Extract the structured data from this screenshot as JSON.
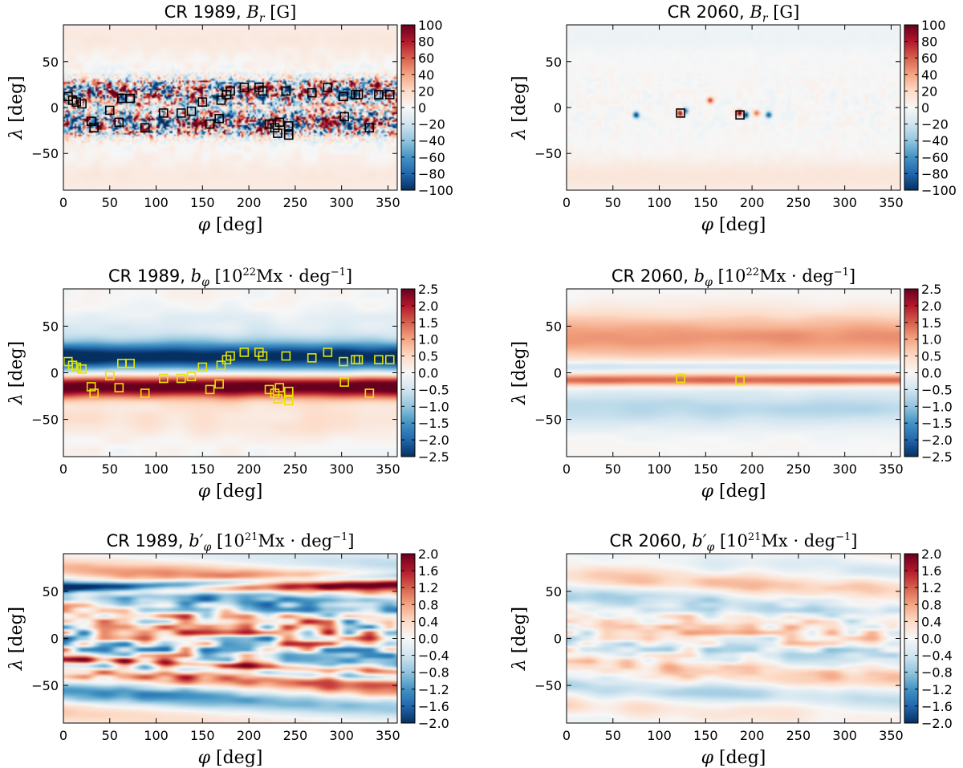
{
  "chart_data": [
    {
      "type": "heatmap",
      "id": "cr1989_Br",
      "title": {
        "prefix": "CR 1989, ",
        "symbol": "B",
        "sub": "r",
        "unit": "[G]"
      },
      "xlabel": {
        "symbol": "φ",
        "unit": "[deg]"
      },
      "ylabel": {
        "symbol": "λ",
        "unit": "[deg]"
      },
      "xlim": [
        0,
        360
      ],
      "ylim": [
        -90,
        90
      ],
      "xticks": [
        "0",
        "50",
        "100",
        "150",
        "200",
        "250",
        "300",
        "350"
      ],
      "yticks": [
        "50",
        "0",
        "−50"
      ],
      "colorbar": {
        "min": -100,
        "max": 100,
        "ticks": [
          "100",
          "80",
          "60",
          "40",
          "20",
          "0",
          "−20",
          "−40",
          "−60",
          "−80",
          "−100"
        ]
      },
      "field": "Br1989",
      "marker_color": "#000000",
      "markers": [
        [
          5,
          12
        ],
        [
          10,
          8
        ],
        [
          14,
          6
        ],
        [
          20,
          4
        ],
        [
          30,
          -15
        ],
        [
          33,
          -22
        ],
        [
          50,
          -3
        ],
        [
          60,
          -16
        ],
        [
          63,
          10
        ],
        [
          72,
          10
        ],
        [
          88,
          -22
        ],
        [
          108,
          -6
        ],
        [
          127,
          -6
        ],
        [
          138,
          -4
        ],
        [
          150,
          6
        ],
        [
          158,
          -18
        ],
        [
          168,
          -12
        ],
        [
          170,
          8
        ],
        [
          176,
          14
        ],
        [
          180,
          18
        ],
        [
          195,
          22
        ],
        [
          211,
          22
        ],
        [
          215,
          18
        ],
        [
          222,
          -18
        ],
        [
          228,
          -22
        ],
        [
          231,
          -28
        ],
        [
          233,
          -16
        ],
        [
          243,
          -30
        ],
        [
          243,
          -20
        ],
        [
          240,
          18
        ],
        [
          268,
          16
        ],
        [
          285,
          22
        ],
        [
          302,
          12
        ],
        [
          303,
          -10
        ],
        [
          315,
          14
        ],
        [
          318,
          14
        ],
        [
          330,
          -22
        ],
        [
          340,
          14
        ],
        [
          352,
          14
        ]
      ]
    },
    {
      "type": "heatmap",
      "id": "cr2060_Br",
      "title": {
        "prefix": "CR 2060, ",
        "symbol": "B",
        "sub": "r",
        "unit": "[G]"
      },
      "xlabel": {
        "symbol": "φ",
        "unit": "[deg]"
      },
      "ylabel": {
        "symbol": "λ",
        "unit": "[deg]"
      },
      "xlim": [
        0,
        360
      ],
      "ylim": [
        -90,
        90
      ],
      "xticks": [
        "0",
        "50",
        "100",
        "150",
        "200",
        "250",
        "300",
        "350"
      ],
      "yticks": [
        "50",
        "0",
        "−50"
      ],
      "colorbar": {
        "min": -100,
        "max": 100,
        "ticks": [
          "100",
          "80",
          "60",
          "40",
          "20",
          "0",
          "−20",
          "−40",
          "−60",
          "−80",
          "−100"
        ]
      },
      "field": "Br2060",
      "marker_color": "#000000",
      "markers": [
        [
          123,
          -6
        ],
        [
          187,
          -8
        ]
      ]
    },
    {
      "type": "heatmap",
      "id": "cr1989_bphi",
      "title": {
        "prefix": "CR 1989, ",
        "symbol": "b",
        "sub": "φ",
        "unit": "[10",
        "exp": "22",
        "unit2": "Mx · deg",
        "exp2": "−1",
        "unit3": "]"
      },
      "xlabel": {
        "symbol": "φ",
        "unit": "[deg]"
      },
      "ylabel": {
        "symbol": "λ",
        "unit": "[deg]"
      },
      "xlim": [
        0,
        360
      ],
      "ylim": [
        -90,
        90
      ],
      "xticks": [
        "0",
        "50",
        "100",
        "150",
        "200",
        "250",
        "300",
        "350"
      ],
      "yticks": [
        "50",
        "0",
        "−50"
      ],
      "colorbar": {
        "min": -2.5,
        "max": 2.5,
        "ticks": [
          "2.5",
          "2.0",
          "1.5",
          "1.0",
          "0.5",
          "0.0",
          "−0.5",
          "−1.0",
          "−1.5",
          "−2.0",
          "−2.5"
        ]
      },
      "field": "bphi1989",
      "marker_color": "#e6e600",
      "markers": [
        [
          5,
          12
        ],
        [
          10,
          8
        ],
        [
          14,
          6
        ],
        [
          20,
          4
        ],
        [
          30,
          -15
        ],
        [
          33,
          -22
        ],
        [
          50,
          -3
        ],
        [
          60,
          -16
        ],
        [
          63,
          10
        ],
        [
          72,
          10
        ],
        [
          88,
          -22
        ],
        [
          108,
          -6
        ],
        [
          127,
          -6
        ],
        [
          138,
          -4
        ],
        [
          150,
          6
        ],
        [
          158,
          -18
        ],
        [
          168,
          -12
        ],
        [
          170,
          8
        ],
        [
          176,
          14
        ],
        [
          180,
          18
        ],
        [
          195,
          22
        ],
        [
          211,
          22
        ],
        [
          215,
          18
        ],
        [
          222,
          -18
        ],
        [
          228,
          -22
        ],
        [
          231,
          -28
        ],
        [
          233,
          -16
        ],
        [
          243,
          -30
        ],
        [
          243,
          -20
        ],
        [
          240,
          18
        ],
        [
          268,
          16
        ],
        [
          285,
          22
        ],
        [
          302,
          12
        ],
        [
          303,
          -10
        ],
        [
          315,
          14
        ],
        [
          318,
          14
        ],
        [
          330,
          -22
        ],
        [
          340,
          14
        ],
        [
          352,
          14
        ]
      ]
    },
    {
      "type": "heatmap",
      "id": "cr2060_bphi",
      "title": {
        "prefix": "CR 2060, ",
        "symbol": "b",
        "sub": "φ",
        "unit": "[10",
        "exp": "22",
        "unit2": "Mx · deg",
        "exp2": "−1",
        "unit3": "]"
      },
      "xlabel": {
        "symbol": "φ",
        "unit": "[deg]"
      },
      "ylabel": {
        "symbol": "λ",
        "unit": "[deg]"
      },
      "xlim": [
        0,
        360
      ],
      "ylim": [
        -90,
        90
      ],
      "xticks": [
        "0",
        "50",
        "100",
        "150",
        "200",
        "250",
        "300",
        "350"
      ],
      "yticks": [
        "50",
        "0",
        "−50"
      ],
      "colorbar": {
        "min": -2.5,
        "max": 2.5,
        "ticks": [
          "2.5",
          "2.0",
          "1.5",
          "1.0",
          "0.5",
          "0.0",
          "−0.5",
          "−1.0",
          "−1.5",
          "−2.0",
          "−2.5"
        ]
      },
      "field": "bphi2060",
      "marker_color": "#e6e600",
      "markers": [
        [
          123,
          -6
        ],
        [
          187,
          -8
        ]
      ]
    },
    {
      "type": "heatmap",
      "id": "cr1989_bphiprime",
      "title": {
        "prefix": "CR 1989, ",
        "symbol": "b′",
        "sub": "φ",
        "unit": "[10",
        "exp": "21",
        "unit2": "Mx · deg",
        "exp2": "−1",
        "unit3": "]"
      },
      "xlabel": {
        "symbol": "φ",
        "unit": "[deg]"
      },
      "ylabel": {
        "symbol": "λ",
        "unit": "[deg]"
      },
      "xlim": [
        0,
        360
      ],
      "ylim": [
        -90,
        90
      ],
      "xticks": [
        "0",
        "50",
        "100",
        "150",
        "200",
        "250",
        "300",
        "350"
      ],
      "yticks": [
        "50",
        "0",
        "−50"
      ],
      "colorbar": {
        "min": -2.0,
        "max": 2.0,
        "ticks": [
          "2.0",
          "1.6",
          "1.2",
          "0.8",
          "0.4",
          "0.0",
          "−0.4",
          "−0.8",
          "−1.2",
          "−1.6",
          "−2.0"
        ]
      },
      "field": "bp1989",
      "marker_color": "",
      "markers": []
    },
    {
      "type": "heatmap",
      "id": "cr2060_bphiprime",
      "title": {
        "prefix": "CR 2060, ",
        "symbol": "b′",
        "sub": "φ",
        "unit": "[10",
        "exp": "21",
        "unit2": "Mx · deg",
        "exp2": "−1",
        "unit3": "]"
      },
      "xlabel": {
        "symbol": "φ",
        "unit": "[deg]"
      },
      "ylabel": {
        "symbol": "λ",
        "unit": "[deg]"
      },
      "xlim": [
        0,
        360
      ],
      "ylim": [
        -90,
        90
      ],
      "xticks": [
        "0",
        "50",
        "100",
        "150",
        "200",
        "250",
        "300",
        "350"
      ],
      "yticks": [
        "50",
        "0",
        "−50"
      ],
      "colorbar": {
        "min": -2.0,
        "max": 2.0,
        "ticks": [
          "2.0",
          "1.6",
          "1.2",
          "0.8",
          "0.4",
          "0.0",
          "−0.4",
          "−0.8",
          "−1.2",
          "−1.6",
          "−2.0"
        ]
      },
      "field": "bp2060",
      "marker_color": "",
      "markers": []
    }
  ]
}
